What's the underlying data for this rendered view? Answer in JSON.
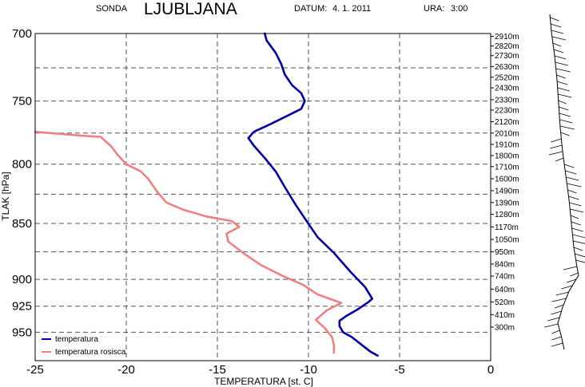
{
  "header": {
    "label": "SONDA",
    "station": "LJUBLJANA",
    "date_label": "DATUM:",
    "date": "4. 1. 2011",
    "time_label": "URA:",
    "time": "3:00"
  },
  "chart_data": {
    "type": "line",
    "xlabel": "TEMPERATURA [st. C]",
    "ylabel": "TLAK [hPa]",
    "xlim": [
      -25,
      0
    ],
    "ylim": [
      700,
      978
    ],
    "y_scale": "log",
    "y_inverted": true,
    "x_ticks": [
      -25,
      -20,
      -15,
      -10,
      -5,
      0
    ],
    "x_tick_labels": [
      "-25",
      "-20",
      "-15",
      "-10",
      "-5",
      "0"
    ],
    "y_ticks": [
      700,
      750,
      800,
      850,
      900,
      925,
      950
    ],
    "y_tick_labels": [
      "700",
      "750",
      "800",
      "850",
      "900",
      "925",
      "950"
    ],
    "grid": true,
    "legend_position": "bottom-left",
    "series": [
      {
        "name": "temperatura",
        "color": "#0000a8",
        "points": [
          [
            -6.2,
            973
          ],
          [
            -6.6,
            969
          ],
          [
            -7.1,
            962
          ],
          [
            -7.6,
            955
          ],
          [
            -8.1,
            950
          ],
          [
            -8.3,
            944
          ],
          [
            -8.3,
            939
          ],
          [
            -7.9,
            934
          ],
          [
            -7.3,
            928
          ],
          [
            -6.7,
            921
          ],
          [
            -6.5,
            918
          ],
          [
            -6.9,
            907
          ],
          [
            -7.7,
            893
          ],
          [
            -8.6,
            876
          ],
          [
            -9.5,
            862
          ],
          [
            -10.1,
            848
          ],
          [
            -10.7,
            834
          ],
          [
            -11.3,
            819
          ],
          [
            -11.8,
            806
          ],
          [
            -12.4,
            795
          ],
          [
            -13.0,
            785
          ],
          [
            -13.3,
            779
          ],
          [
            -13.0,
            774
          ],
          [
            -12.1,
            768
          ],
          [
            -11.1,
            761
          ],
          [
            -10.4,
            756
          ],
          [
            -10.2,
            750
          ],
          [
            -10.4,
            744
          ],
          [
            -10.9,
            738
          ],
          [
            -11.3,
            730
          ],
          [
            -11.5,
            722
          ],
          [
            -11.8,
            714
          ],
          [
            -12.3,
            705
          ],
          [
            -12.4,
            700
          ]
        ]
      },
      {
        "name": "temperatura rosisca",
        "color": "#f08080",
        "points": [
          [
            -8.6,
            970
          ],
          [
            -8.6,
            963
          ],
          [
            -8.7,
            955
          ],
          [
            -9.1,
            946
          ],
          [
            -9.6,
            938
          ],
          [
            -9.0,
            929
          ],
          [
            -8.2,
            922
          ],
          [
            -9.5,
            914
          ],
          [
            -10.3,
            905
          ],
          [
            -11.4,
            897
          ],
          [
            -12.6,
            887
          ],
          [
            -13.5,
            877
          ],
          [
            -14.4,
            866
          ],
          [
            -14.5,
            859
          ],
          [
            -13.8,
            853
          ],
          [
            -14.2,
            848
          ],
          [
            -15.6,
            844
          ],
          [
            -16.9,
            838
          ],
          [
            -17.8,
            832
          ],
          [
            -18.3,
            823
          ],
          [
            -18.8,
            812
          ],
          [
            -19.2,
            806
          ],
          [
            -20.0,
            800
          ],
          [
            -20.5,
            792
          ],
          [
            -20.8,
            786
          ],
          [
            -21.4,
            778
          ],
          [
            -22.5,
            777
          ],
          [
            -25.0,
            774
          ]
        ]
      }
    ],
    "altitude_labels": [
      {
        "label": "2910m",
        "p": 702
      },
      {
        "label": "2820m",
        "p": 709
      },
      {
        "label": "2730m",
        "p": 716
      },
      {
        "label": "2630m",
        "p": 724
      },
      {
        "label": "2520m",
        "p": 732
      },
      {
        "label": "2430m",
        "p": 740
      },
      {
        "label": "2330m",
        "p": 749
      },
      {
        "label": "2230m",
        "p": 757
      },
      {
        "label": "2120m",
        "p": 766
      },
      {
        "label": "2010m",
        "p": 775
      },
      {
        "label": "1910m",
        "p": 784
      },
      {
        "label": "1800m",
        "p": 793
      },
      {
        "label": "1710m",
        "p": 802
      },
      {
        "label": "1600m",
        "p": 812
      },
      {
        "label": "1490m",
        "p": 822
      },
      {
        "label": "1390m",
        "p": 832
      },
      {
        "label": "1280m",
        "p": 842
      },
      {
        "label": "1170m",
        "p": 853
      },
      {
        "label": "1050m",
        "p": 864
      },
      {
        "label": "950m",
        "p": 875
      },
      {
        "label": "840m",
        "p": 886
      },
      {
        "label": "740m",
        "p": 897
      },
      {
        "label": "640m",
        "p": 909
      },
      {
        "label": "520m",
        "p": 921
      },
      {
        "label": "410m",
        "p": 933
      },
      {
        "label": "300m",
        "p": 945
      }
    ]
  }
}
